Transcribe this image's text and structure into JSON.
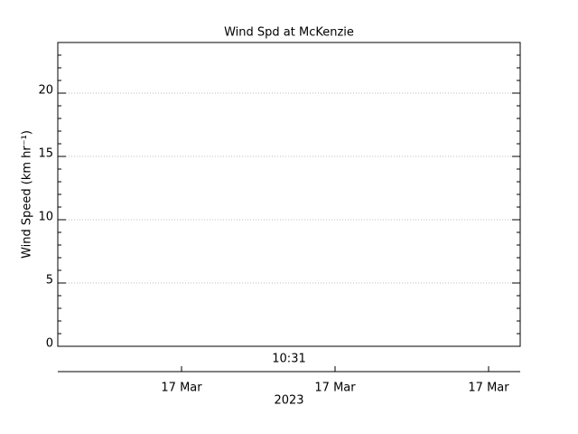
{
  "chart_data": {
    "type": "line",
    "title": "Wind Spd at McKenzie",
    "ylabel": "Wind Speed (km hr⁻¹)",
    "ylim": [
      0,
      24
    ],
    "yticks": [
      0,
      5,
      10,
      15,
      20
    ],
    "grid": true,
    "series": [],
    "time_label": "10:31",
    "date_ticks": [
      "17 Mar",
      "17 Mar",
      "17 Mar"
    ],
    "year_label": "2023"
  }
}
